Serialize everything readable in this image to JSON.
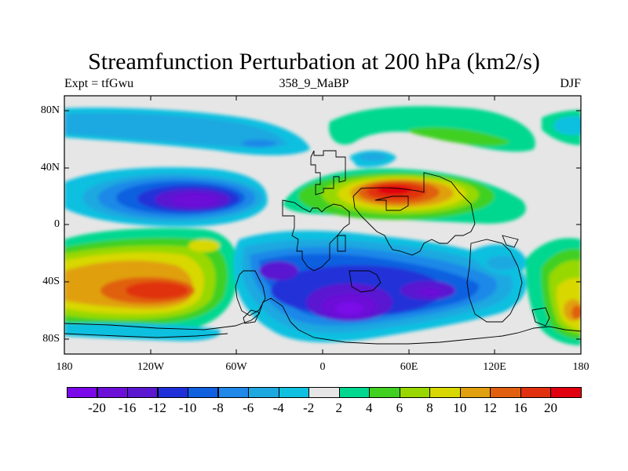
{
  "title": "Streamfunction Perturbation at 200 hPa (km2/s)",
  "subtitle_left": "Expt = tfGwu",
  "subtitle_center": "358_9_MaBP",
  "subtitle_right": "DJF",
  "map": {
    "type": "contour-map",
    "projection": "cylindrical-equidistant",
    "variable": "streamfunction perturbation",
    "level_hpa": 200,
    "units": "km2/s",
    "season": "DJF",
    "lon_range": [
      -180,
      180
    ],
    "lat_range": [
      -90,
      90
    ],
    "background_color": "#e6e6e6",
    "x_ticks": [
      "180",
      "120W",
      "60W",
      "0",
      "60E",
      "120E",
      "180"
    ],
    "y_ticks": [
      "80N",
      "40N",
      "0",
      "40S",
      "80S"
    ]
  },
  "colorbar": {
    "colors": [
      "#7a08e8",
      "#6c10d8",
      "#5a18d0",
      "#2030d8",
      "#1060e0",
      "#1f88e8",
      "#1ea8e0",
      "#10c0e0",
      "#e6e6e6",
      "#00d890",
      "#40d020",
      "#98d800",
      "#d8d800",
      "#e0a010",
      "#e06010",
      "#e03010",
      "#e00010"
    ],
    "labels": [
      "-20",
      "-16",
      "-12",
      "-10",
      "-8",
      "-6",
      "-4",
      "-2",
      "2",
      "4",
      "6",
      "8",
      "10",
      "12",
      "16",
      "20"
    ]
  },
  "features": [
    {
      "name": "negative center",
      "location": "20N 90W",
      "value": -20
    },
    {
      "name": "positive center",
      "location": "25N 45E",
      "value": 20
    },
    {
      "name": "positive center",
      "location": "45S 120W",
      "value": 20
    },
    {
      "name": "negative center",
      "location": "60S 15E",
      "value": -20
    },
    {
      "name": "negative center",
      "location": "50S 65E",
      "value": -16
    },
    {
      "name": "positive center",
      "location": "70S 170E",
      "value": 20
    }
  ]
}
